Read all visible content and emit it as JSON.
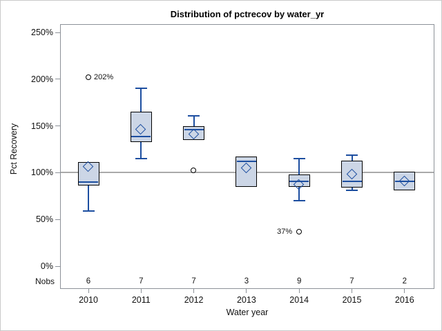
{
  "chart_data": {
    "type": "boxplot",
    "title": "Distribution of pctrecov by water_yr",
    "xlabel": "Water year",
    "ylabel": "Pct Recovery",
    "nobs_label": "Nobs",
    "y_axis": {
      "tick_labels": [
        "0%",
        "50%",
        "100%",
        "150%",
        "200%",
        "250%"
      ],
      "tick_values": [
        0,
        50,
        100,
        150,
        200,
        250
      ],
      "range_pct": [
        -25,
        259
      ],
      "grid": false
    },
    "reference_line_pct": 100,
    "categories": [
      "2010",
      "2011",
      "2012",
      "2013",
      "2014",
      "2015",
      "2016"
    ],
    "nobs": [
      6,
      7,
      7,
      3,
      9,
      7,
      2
    ],
    "series": [
      {
        "year": "2010",
        "nobs": 6,
        "whisker_low": 59,
        "q1": 86,
        "median": 90,
        "q3": 111,
        "whisker_high": 111,
        "mean": 106,
        "outliers": [
          {
            "value": 202,
            "label": "202%",
            "label_side": "right"
          }
        ]
      },
      {
        "year": "2011",
        "nobs": 7,
        "whisker_low": 115,
        "q1": 133,
        "median": 139,
        "q3": 165,
        "whisker_high": 190,
        "mean": 146,
        "outliers": []
      },
      {
        "year": "2012",
        "nobs": 7,
        "whisker_low": 135,
        "q1": 135,
        "median": 146,
        "q3": 150,
        "whisker_high": 161,
        "mean": 141,
        "outliers": [
          {
            "value": 102,
            "label": "",
            "label_side": "left"
          }
        ]
      },
      {
        "year": "2013",
        "nobs": 3,
        "whisker_low": 85,
        "q1": 85,
        "median": 112,
        "q3": 117,
        "whisker_high": 117,
        "mean": 105,
        "outliers": []
      },
      {
        "year": "2014",
        "nobs": 9,
        "whisker_low": 70,
        "q1": 85,
        "median": 91,
        "q3": 98,
        "whisker_high": 115,
        "mean": 87,
        "outliers": [
          {
            "value": 37,
            "label": "37%",
            "label_side": "left"
          }
        ]
      },
      {
        "year": "2015",
        "nobs": 7,
        "whisker_low": 81,
        "q1": 84,
        "median": 91,
        "q3": 113,
        "whisker_high": 119,
        "mean": 98,
        "outliers": []
      },
      {
        "year": "2016",
        "nobs": 2,
        "whisker_low": 81,
        "q1": 81,
        "median": 91,
        "q3": 101,
        "whisker_high": 101,
        "mean": 91,
        "outliers": []
      }
    ],
    "colors": {
      "box_fill": "#ccd6e6",
      "box_border": "#000000",
      "line_blue": "#1c4ea0",
      "reference_gray": "#a9a9a9",
      "axis_gray": "#8c9198",
      "figure_border": "#c9c9c9",
      "background": "#ffffff"
    }
  }
}
